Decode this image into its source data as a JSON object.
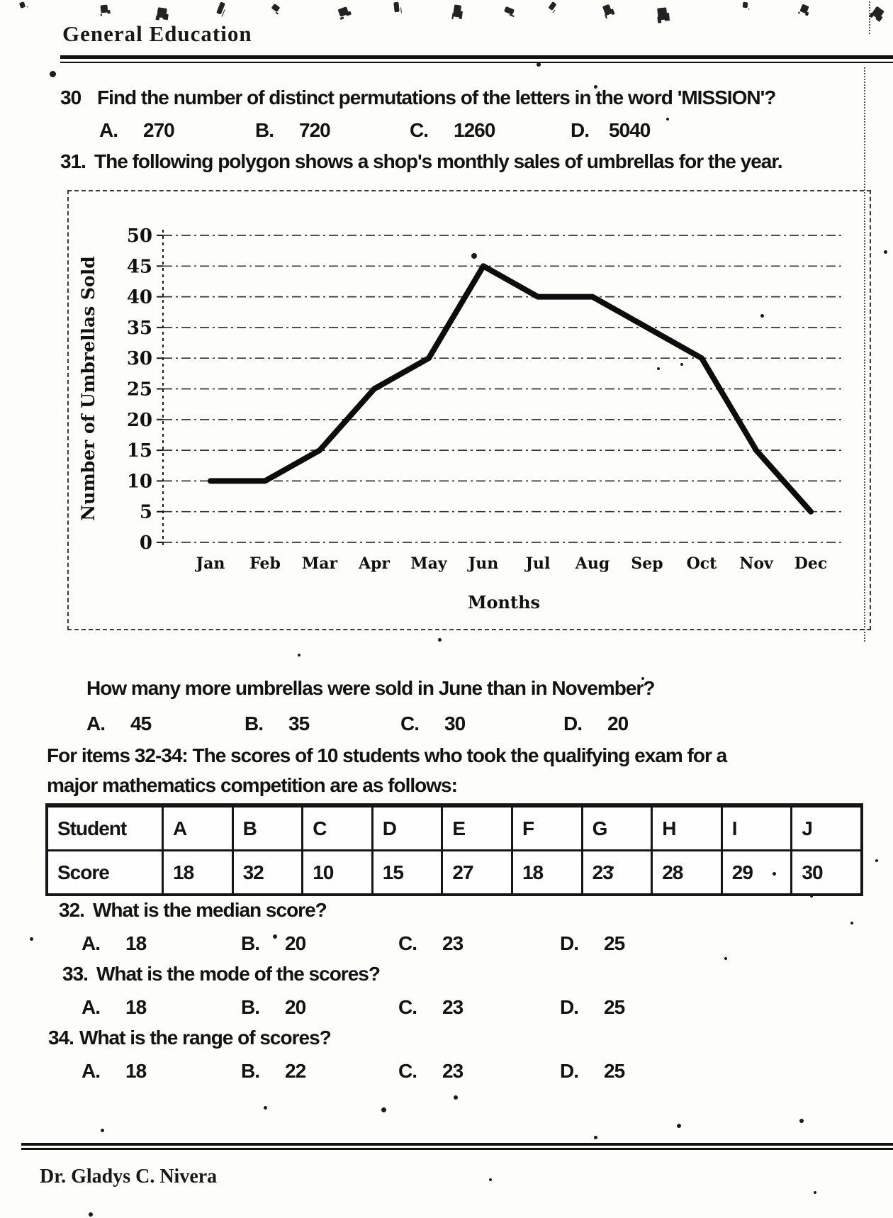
{
  "page": {
    "header_title": "General Education",
    "footer_author": "Dr. Gladys C. Nivera"
  },
  "questions": {
    "q30": {
      "number": "30",
      "text": "Find the number of distinct permutations of the letters in the word 'MISSION'?",
      "options": [
        {
          "label": "A.",
          "value": "270"
        },
        {
          "label": "B.",
          "value": "720"
        },
        {
          "label": "C.",
          "value": "1260"
        },
        {
          "label": "D.",
          "value": "5040"
        }
      ]
    },
    "q31": {
      "number": "31.",
      "text": "The following polygon shows a shop's monthly sales of umbrellas for the year."
    },
    "q31_followup": {
      "text": "How many more umbrellas were sold in June than in November?",
      "options": [
        {
          "label": "A.",
          "value": "45"
        },
        {
          "label": "B.",
          "value": "35"
        },
        {
          "label": "C.",
          "value": "30"
        },
        {
          "label": "D.",
          "value": "20"
        }
      ]
    },
    "items_intro": {
      "line1": "For items 32-34: The scores of 10 students who took the qualifying exam for a",
      "line2": "major mathematics competition are as follows:"
    },
    "q32": {
      "number": "32.",
      "text": "What is the median score?",
      "options": [
        {
          "label": "A.",
          "value": "18"
        },
        {
          "label": "B.",
          "value": "20"
        },
        {
          "label": "C.",
          "value": "23"
        },
        {
          "label": "D.",
          "value": "25"
        }
      ]
    },
    "q33": {
      "number": "33.",
      "text": "What is the mode of the scores?",
      "options": [
        {
          "label": "A.",
          "value": "18"
        },
        {
          "label": "B.",
          "value": "20"
        },
        {
          "label": "C.",
          "value": "23"
        },
        {
          "label": "D.",
          "value": "25"
        }
      ]
    },
    "q34": {
      "number": "34.",
      "text": "What is the range of scores?",
      "options": [
        {
          "label": "A.",
          "value": "18"
        },
        {
          "label": "B.",
          "value": "22"
        },
        {
          "label": "C.",
          "value": "23"
        },
        {
          "label": "D.",
          "value": "25"
        }
      ]
    }
  },
  "chart_data": {
    "type": "line",
    "x": [
      "Jan",
      "Feb",
      "Mar",
      "Apr",
      "May",
      "Jun",
      "Jul",
      "Aug",
      "Sep",
      "Oct",
      "Nov",
      "Dec"
    ],
    "values": [
      10,
      10,
      15,
      25,
      30,
      45,
      40,
      40,
      35,
      30,
      15,
      5
    ],
    "title": "",
    "xlabel": "Months",
    "ylabel": "Number of Umbrellas Sold",
    "ylim": [
      0,
      50
    ],
    "ytick_step": 5,
    "grid": true,
    "legend": false,
    "line_color": "#0d0d0d"
  },
  "score_table": {
    "header_row": [
      "Student",
      "A",
      "B",
      "C",
      "D",
      "E",
      "F",
      "G",
      "H",
      "I",
      "J"
    ],
    "score_row": [
      "Score",
      "18",
      "32",
      "10",
      "15",
      "27",
      "18",
      "23",
      "28",
      "29",
      "30"
    ]
  }
}
